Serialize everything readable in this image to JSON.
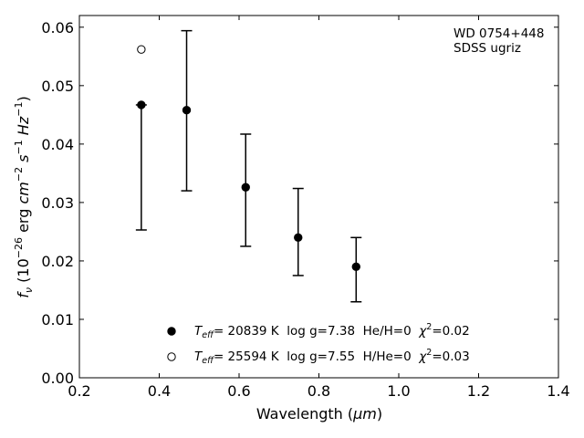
{
  "chart_data": {
    "type": "scatter",
    "title": "",
    "xlabel": "Wavelength (μm)",
    "ylabel": "f_ν (10^-26 erg cm^-2 s^-1 Hz^-1)",
    "xlim": [
      0.2,
      1.4
    ],
    "ylim": [
      0.0,
      0.062
    ],
    "x_ticks": [
      "0.2",
      "0.4",
      "0.6",
      "0.8",
      "1.0",
      "1.2",
      "1.4"
    ],
    "y_ticks": [
      "0.00",
      "0.01",
      "0.02",
      "0.03",
      "0.04",
      "0.05",
      "0.06"
    ],
    "grid": false,
    "annotation": [
      "WD 0754+448",
      "SDSS ugriz"
    ],
    "observed": {
      "x": [
        0.3551,
        0.4686,
        0.6166,
        0.748,
        0.8932
      ],
      "y": [
        0.0467,
        0.0458,
        0.0326,
        0.024,
        0.019
      ],
      "err_low": [
        0.0253,
        0.032,
        0.0225,
        0.0175,
        0.013
      ],
      "err_high": [
        0.0467,
        0.0594,
        0.0417,
        0.0324,
        0.024
      ]
    },
    "series": [
      {
        "name": "T_eff= 20839 K  log g=7.38  He/H=0  χ²=0.02",
        "marker": "filled-circle",
        "x": [
          0.3551,
          0.4686,
          0.6166,
          0.748,
          0.8932
        ],
        "y": [
          0.0467,
          0.0458,
          0.0326,
          0.024,
          0.019
        ]
      },
      {
        "name": "T_eff= 25594 K  log g=7.55  H/He=0  χ²=0.03",
        "marker": "open-circle",
        "x": [
          0.3551
        ],
        "y": [
          0.0562
        ]
      }
    ],
    "legend_placement": "bottom-center",
    "legend": [
      {
        "prefix": "T",
        "sub": "eff",
        "main": "= 20839 K  log g=7.38  He/H=0  ",
        "chi": "χ",
        "sup": "2",
        "tail": "=0.02"
      },
      {
        "prefix": "T",
        "sub": "eff",
        "main": "= 25594 K  log g=7.55  H/He=0  ",
        "chi": "χ",
        "sup": "2",
        "tail": "=0.03"
      }
    ],
    "xlabel_parts": {
      "pre": "Wavelength (",
      "mu": "μm",
      "post": ")"
    },
    "ylabel_parts": {
      "pre": "f",
      "sub": "ν",
      "mid": " (10",
      "e1": "−26",
      "t1": " erg ",
      "cm": "cm",
      "e2": "−2",
      "s": " s",
      "e3": "−1",
      "hz": " Hz",
      "e4": "−1",
      "post": ")"
    }
  }
}
